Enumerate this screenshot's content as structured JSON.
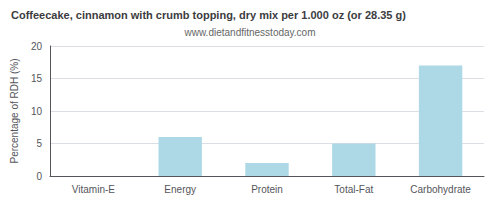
{
  "chart_data": {
    "type": "bar",
    "title": "Coffeecake, cinnamon with crumb topping, dry mix per 1.000 oz (or 28.35 g)",
    "subtitle": "www.dietandfitnesstoday.com",
    "categories": [
      "Vitamin-E",
      "Energy",
      "Protein",
      "Total-Fat",
      "Carbohydrate"
    ],
    "values": [
      0,
      6,
      2,
      5,
      17
    ],
    "color": "#add8e6",
    "ylabel": "Percentage of RDH (%)",
    "ylim": [
      0,
      20
    ],
    "yticks": [
      0,
      5,
      10,
      15,
      20
    ],
    "grid": true
  }
}
